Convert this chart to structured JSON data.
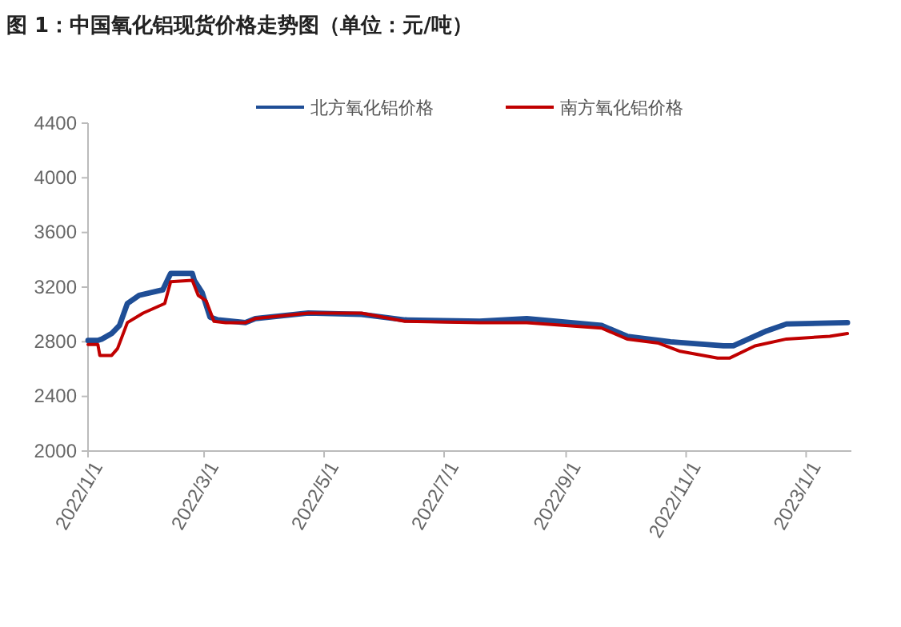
{
  "chart_data": {
    "type": "line",
    "title": "图 1：中国氧化铝现货价格走势图（单位：元/吨）",
    "x": [
      "2022-01-01",
      "2022-01-06",
      "2022-01-08",
      "2022-01-13",
      "2022-01-17",
      "2022-01-21",
      "2022-01-27",
      "2022-02-08",
      "2022-02-11",
      "2022-02-12",
      "2022-02-23",
      "2022-02-24",
      "2022-02-28",
      "2022-03-04",
      "2022-03-08",
      "2022-03-22",
      "2022-03-27",
      "2022-04-23",
      "2022-05-20",
      "2022-06-11",
      "2022-07-19",
      "2022-08-12",
      "2022-09-19",
      "2022-10-02",
      "2022-10-24",
      "2022-11-20",
      "2022-11-25",
      "2022-12-12",
      "2022-12-22",
      "2023-01-22"
    ],
    "series": [
      {
        "name": "北方氧化铝价格",
        "color": "#1f4e96",
        "values": [
          2810,
          2810,
          2820,
          2860,
          2920,
          3080,
          3140,
          3180,
          3270,
          3300,
          3300,
          3250,
          3160,
          2980,
          2960,
          2940,
          2970,
          3010,
          3000,
          2960,
          2950,
          2970,
          2920,
          2840,
          2800,
          2770,
          2770,
          2880,
          2930,
          2940
        ]
      },
      {
        "name": "南方氧化铝价格",
        "color": "#c00000",
        "x": [
          "2022-01-01",
          "2022-01-06",
          "2022-01-07",
          "2022-01-13",
          "2022-01-16",
          "2022-01-21",
          "2022-01-29",
          "2022-02-09",
          "2022-02-12",
          "2022-02-23",
          "2022-02-26",
          "2022-03-02",
          "2022-03-06",
          "2022-03-12",
          "2022-03-22",
          "2022-03-27",
          "2022-04-23",
          "2022-05-20",
          "2022-06-11",
          "2022-07-19",
          "2022-08-12",
          "2022-09-19",
          "2022-10-02",
          "2022-10-18",
          "2022-10-29",
          "2022-11-17",
          "2022-11-23",
          "2022-12-06",
          "2022-12-22",
          "2023-01-13",
          "2023-01-22"
        ],
        "values": [
          2780,
          2780,
          2700,
          2700,
          2750,
          2940,
          3010,
          3080,
          3240,
          3250,
          3140,
          3100,
          2950,
          2940,
          2940,
          2970,
          3010,
          3010,
          2950,
          2940,
          2940,
          2900,
          2820,
          2790,
          2730,
          2680,
          2680,
          2770,
          2820,
          2840,
          2860
        ]
      }
    ],
    "xlim": [
      "2022-01-01",
      "2023-01-24"
    ],
    "xticks": [
      {
        "value": "2022-01-01",
        "label": "2022/1/1"
      },
      {
        "value": "2022-03-01",
        "label": "2022/3/1"
      },
      {
        "value": "2022-05-01",
        "label": "2022/5/1"
      },
      {
        "value": "2022-07-01",
        "label": "2022/7/1"
      },
      {
        "value": "2022-09-01",
        "label": "2022/9/1"
      },
      {
        "value": "2022-11-01",
        "label": "2022/11/1"
      },
      {
        "value": "2023-01-01",
        "label": "2023/1/1"
      }
    ],
    "ylim": [
      2000,
      4400
    ],
    "yticks": [
      2000,
      2400,
      2800,
      3200,
      3600,
      4000,
      4400
    ],
    "grid": false,
    "legend": "top",
    "marker": "none",
    "line_style": "solid"
  }
}
